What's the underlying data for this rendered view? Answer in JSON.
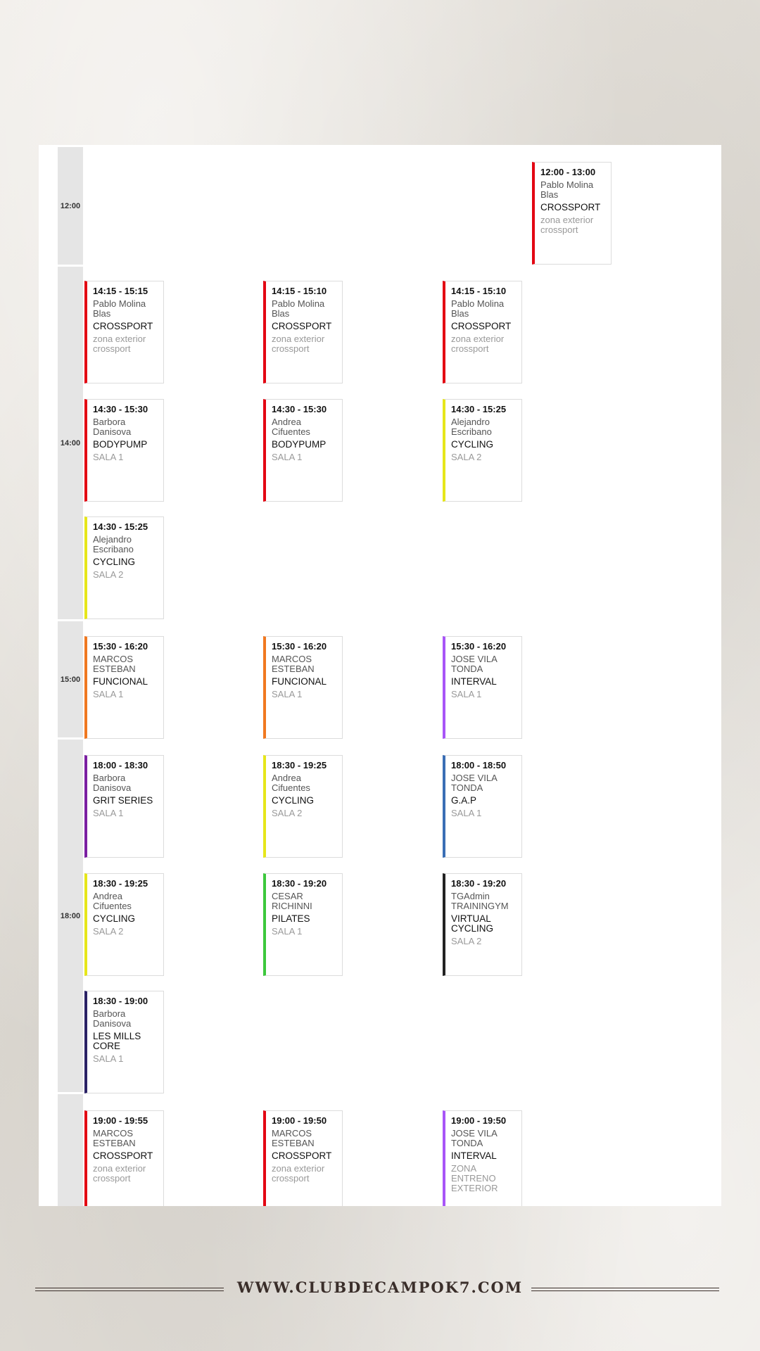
{
  "hours": [
    "12:00",
    "14:00",
    "15:00",
    "18:00",
    ""
  ],
  "colors": {
    "red": "#e30613",
    "yellow": "#e6e61a",
    "orange": "#f07820",
    "violet": "#a855f7",
    "purple": "#7b1fa2",
    "blue": "#3a6eb5",
    "green": "#3cc83c",
    "black": "#222222",
    "navy": "#2b2266"
  },
  "sessions": [
    {
      "time": "12:00 - 13:00",
      "instructor": "Pablo Molina Blas",
      "class": "CROSSPORT",
      "room": "zona exterior crossport",
      "color": "red"
    },
    {
      "time": "14:15 - 15:15",
      "instructor": "Pablo Molina Blas",
      "class": "CROSSPORT",
      "room": "zona exterior crossport",
      "color": "red"
    },
    {
      "time": "14:15 - 15:10",
      "instructor": "Pablo Molina Blas",
      "class": "CROSSPORT",
      "room": "zona exterior crossport",
      "color": "red"
    },
    {
      "time": "14:15 - 15:10",
      "instructor": "Pablo Molina Blas",
      "class": "CROSSPORT",
      "room": "zona exterior crossport",
      "color": "red"
    },
    {
      "time": "14:30 - 15:30",
      "instructor": "Barbora Danisova",
      "class": "BODYPUMP",
      "room": "SALA 1",
      "color": "red"
    },
    {
      "time": "14:30 - 15:30",
      "instructor": "Andrea Cifuentes",
      "class": "BODYPUMP",
      "room": "SALA 1",
      "color": "red"
    },
    {
      "time": "14:30 - 15:25",
      "instructor": "Alejandro Escribano",
      "class": "CYCLING",
      "room": "SALA 2",
      "color": "yellow"
    },
    {
      "time": "14:30 - 15:25",
      "instructor": "Alejandro Escribano",
      "class": "CYCLING",
      "room": "SALA 2",
      "color": "yellow"
    },
    {
      "time": "15:30 - 16:20",
      "instructor": "MARCOS ESTEBAN",
      "class": "FUNCIONAL",
      "room": "SALA 1",
      "color": "orange"
    },
    {
      "time": "15:30 - 16:20",
      "instructor": "MARCOS ESTEBAN",
      "class": "FUNCIONAL",
      "room": "SALA 1",
      "color": "orange"
    },
    {
      "time": "15:30 - 16:20",
      "instructor": "JOSE VILA TONDA",
      "class": "INTERVAL",
      "room": "SALA 1",
      "color": "violet"
    },
    {
      "time": "18:00 - 18:30",
      "instructor": "Barbora Danisova",
      "class": "GRIT SERIES",
      "room": "SALA 1",
      "color": "purple"
    },
    {
      "time": "18:30 - 19:25",
      "instructor": "Andrea Cifuentes",
      "class": "CYCLING",
      "room": "SALA 2",
      "color": "yellow"
    },
    {
      "time": "18:00 - 18:50",
      "instructor": "JOSE VILA TONDA",
      "class": "G.A.P",
      "room": "SALA 1",
      "color": "blue"
    },
    {
      "time": "18:30 - 19:25",
      "instructor": "Andrea Cifuentes",
      "class": "CYCLING",
      "room": "SALA 2",
      "color": "yellow"
    },
    {
      "time": "18:30 - 19:20",
      "instructor": "CESAR RICHINNI",
      "class": "PILATES",
      "room": "SALA 1",
      "color": "green"
    },
    {
      "time": "18:30 - 19:20",
      "instructor": "TGAdmin TRAININGYM",
      "class": "VIRTUAL CYCLING",
      "room": "SALA 2",
      "color": "black"
    },
    {
      "time": "18:30 - 19:00",
      "instructor": "Barbora Danisova",
      "class": "LES MILLS CORE",
      "room": "SALA 1",
      "color": "navy"
    },
    {
      "time": "19:00 - 19:55",
      "instructor": "MARCOS ESTEBAN",
      "class": "CROSSPORT",
      "room": "zona exterior crossport",
      "color": "red"
    },
    {
      "time": "19:00 - 19:50",
      "instructor": "MARCOS ESTEBAN",
      "class": "CROSSPORT",
      "room": "zona exterior crossport",
      "color": "red"
    },
    {
      "time": "19:00 - 19:50",
      "instructor": "JOSE VILA TONDA",
      "class": "INTERVAL",
      "room": "ZONA ENTRENO EXTERIOR",
      "color": "violet"
    }
  ],
  "footer": {
    "website": "WWW.CLUBDECAMPOK7.COM"
  }
}
